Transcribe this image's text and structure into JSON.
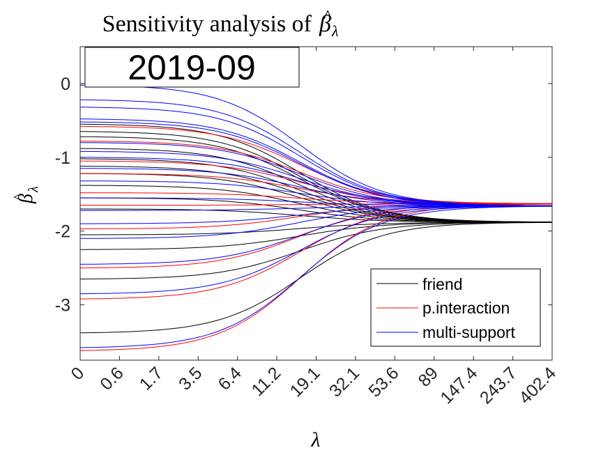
{
  "chart_data": {
    "type": "line",
    "title": "Sensitivity analysis of β̂λ",
    "title_prefix": "Sensitivity analysis of",
    "title_symbol": "β",
    "title_hat": "^",
    "title_subscript": "λ",
    "xlabel": "λ",
    "ylabel_symbol": "β",
    "ylabel_hat": "^",
    "ylabel_subscript": "λ",
    "annotation": "2019-09",
    "x_ticks": [
      "0",
      "0.6",
      "1.7",
      "3.5",
      "6.4",
      "11.2",
      "19.1",
      "32.1",
      "53.6",
      "89",
      "147.4",
      "243.7",
      "402.4"
    ],
    "y_ticks": [
      0,
      -1,
      -2,
      -3
    ],
    "y_tick_labels": [
      "0",
      "-1",
      "-2",
      "-3"
    ],
    "ylim": [
      -3.75,
      0.5
    ],
    "x_index_range": [
      0,
      12
    ],
    "grid": false,
    "legend_position": "bottom-right",
    "legend": [
      {
        "name": "friend",
        "color": "#000000"
      },
      {
        "name": "p.interaction",
        "color": "#ff0000"
      },
      {
        "name": "multi-support",
        "color": "#0000ff"
      }
    ],
    "series": [
      {
        "name": "friend",
        "color": "#000000",
        "end": -1.88,
        "starts": [
          -0.55,
          -0.65,
          -0.72,
          -0.88,
          -1.02,
          -1.12,
          -1.22,
          -1.38,
          -1.55,
          -1.7,
          -2.05,
          -2.25,
          -2.65,
          -3.38
        ]
      },
      {
        "name": "p.interaction",
        "color": "#ff0000",
        "end": -1.63,
        "starts": [
          -0.58,
          -0.78,
          -1.05,
          -1.22,
          -1.48,
          -1.65,
          -1.97,
          -2.5,
          -2.92,
          -3.62
        ]
      },
      {
        "name": "multi-support",
        "color": "#0000ff",
        "end": -1.66,
        "starts": [
          -0.02,
          -0.22,
          -0.32,
          -0.48,
          -0.52,
          -0.8,
          -0.92,
          -1.0,
          -1.15,
          -1.32,
          -1.55,
          -1.72,
          -1.9,
          -2.1,
          -2.45,
          -2.85,
          -3.58
        ]
      }
    ]
  }
}
